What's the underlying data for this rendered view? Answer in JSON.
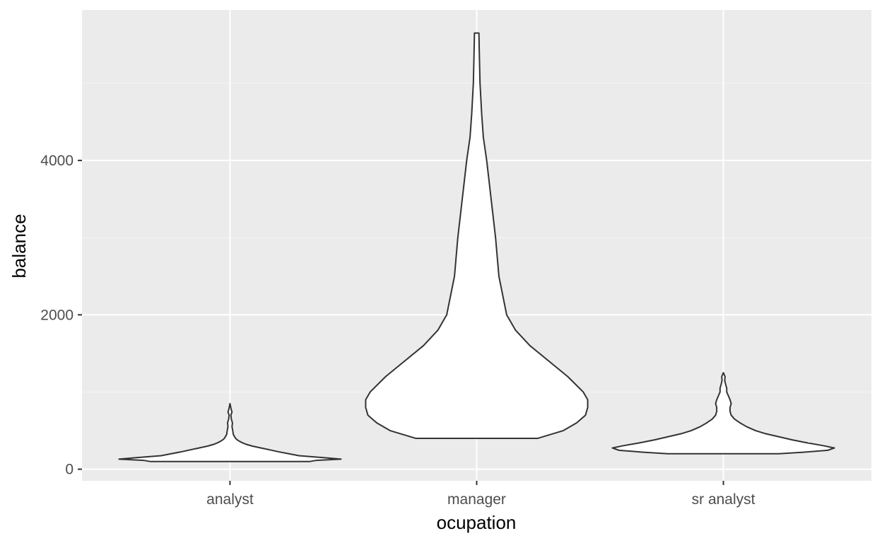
{
  "chart_data": {
    "type": "violin",
    "xlabel": "ocupation",
    "ylabel": "balance",
    "categories": [
      "analyst",
      "manager",
      "sr analyst"
    ],
    "ylim": [
      -150,
      5950
    ],
    "y_ticks": [
      0,
      2000,
      4000
    ],
    "y_tick_labels": [
      "0",
      "2000",
      "4000"
    ],
    "grid": true,
    "colors": {
      "panel": "#ebebeb",
      "grid_major": "#ffffff",
      "grid_minor": "#f5f5f5",
      "violin_fill": "#ffffff",
      "violin_stroke": "#333333",
      "tick_text": "#4d4d4d"
    },
    "violins": [
      {
        "category": "analyst",
        "min": 100,
        "max": 850,
        "profile": [
          [
            100,
            0.72
          ],
          [
            115,
            0.78
          ],
          [
            130,
            1.0
          ],
          [
            145,
            0.88
          ],
          [
            160,
            0.75
          ],
          [
            175,
            0.62
          ],
          [
            200,
            0.53
          ],
          [
            225,
            0.44
          ],
          [
            250,
            0.36
          ],
          [
            275,
            0.28
          ],
          [
            300,
            0.2
          ],
          [
            325,
            0.14
          ],
          [
            350,
            0.1
          ],
          [
            375,
            0.07
          ],
          [
            400,
            0.05
          ],
          [
            450,
            0.03
          ],
          [
            500,
            0.025
          ],
          [
            550,
            0.018
          ],
          [
            600,
            0.022
          ],
          [
            650,
            0.012
          ],
          [
            700,
            0.008
          ],
          [
            740,
            0.018
          ],
          [
            780,
            0.01
          ],
          [
            850,
            0.0
          ]
        ]
      },
      {
        "category": "manager",
        "min": 400,
        "max": 5650,
        "profile": [
          [
            400,
            0.55
          ],
          [
            500,
            0.78
          ],
          [
            600,
            0.9
          ],
          [
            700,
            0.98
          ],
          [
            800,
            1.0
          ],
          [
            900,
            1.0
          ],
          [
            1000,
            0.96
          ],
          [
            1200,
            0.82
          ],
          [
            1400,
            0.65
          ],
          [
            1600,
            0.48
          ],
          [
            1800,
            0.35
          ],
          [
            2000,
            0.27
          ],
          [
            2500,
            0.2
          ],
          [
            3000,
            0.17
          ],
          [
            3500,
            0.13
          ],
          [
            4000,
            0.09
          ],
          [
            4300,
            0.06
          ],
          [
            4600,
            0.045
          ],
          [
            5000,
            0.03
          ],
          [
            5300,
            0.025
          ],
          [
            5650,
            0.02
          ]
        ]
      },
      {
        "category": "sr analyst",
        "min": 200,
        "max": 1250,
        "profile": [
          [
            200,
            0.5
          ],
          [
            220,
            0.72
          ],
          [
            245,
            0.94
          ],
          [
            275,
            1.0
          ],
          [
            305,
            0.9
          ],
          [
            340,
            0.76
          ],
          [
            380,
            0.62
          ],
          [
            420,
            0.5
          ],
          [
            460,
            0.38
          ],
          [
            500,
            0.29
          ],
          [
            550,
            0.21
          ],
          [
            600,
            0.15
          ],
          [
            650,
            0.1
          ],
          [
            700,
            0.07
          ],
          [
            750,
            0.06
          ],
          [
            800,
            0.06
          ],
          [
            850,
            0.07
          ],
          [
            900,
            0.06
          ],
          [
            950,
            0.045
          ],
          [
            1000,
            0.03
          ],
          [
            1050,
            0.03
          ],
          [
            1100,
            0.02
          ],
          [
            1150,
            0.012
          ],
          [
            1200,
            0.015
          ],
          [
            1250,
            0.0
          ]
        ]
      }
    ]
  }
}
